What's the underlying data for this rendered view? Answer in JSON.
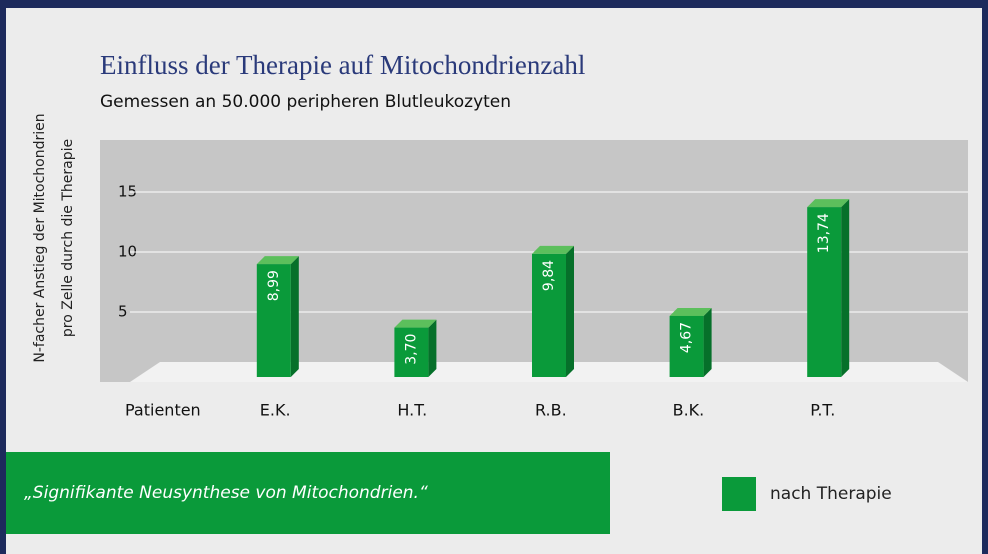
{
  "chart_data": {
    "type": "bar",
    "title": "Einfluss der Therapie auf Mitochondrienzahl",
    "subtitle": "Gemessen an 50.000 peripheren Blutleukozyten",
    "y_label": [
      "N-facher Anstieg der Mitochondrien",
      "pro Zelle durch die Therapie"
    ],
    "x_label": "Patienten",
    "categories": [
      "E.K.",
      "H.T.",
      "R.B.",
      "B.K.",
      "P.T."
    ],
    "series": [
      {
        "name": "nach Therapie",
        "color": "#0a9a3a",
        "values": [
          8.99,
          3.7,
          9.84,
          4.67,
          13.74
        ],
        "value_labels": [
          "8,99",
          "3,70",
          "9,84",
          "4,67",
          "13,74"
        ]
      }
    ],
    "ylim": [
      0,
      19
    ],
    "yticks": [
      5,
      10,
      15
    ],
    "grid": true,
    "annotation": "„Signifikante Neusynthese von Mitochondrien.“"
  }
}
